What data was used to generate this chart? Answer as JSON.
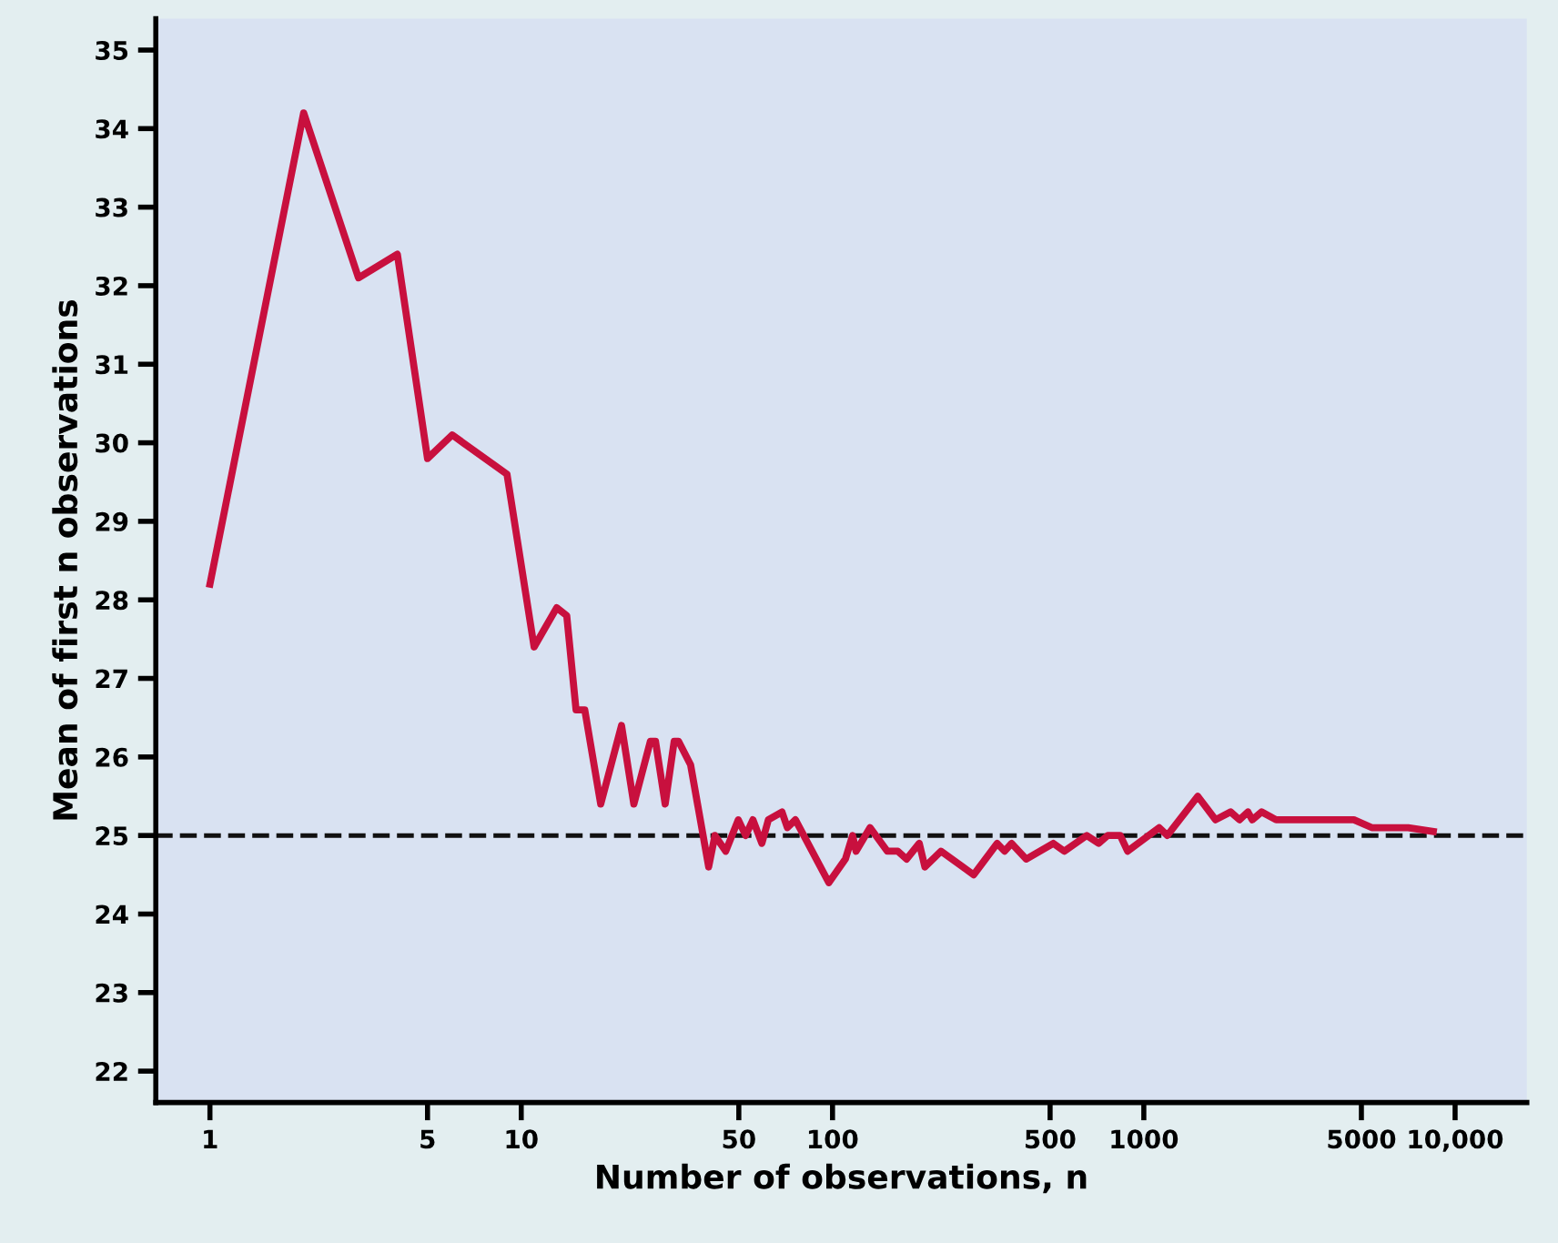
{
  "chart_data": {
    "type": "line",
    "xlabel": "Number of observations, n",
    "ylabel": "Mean of first n observations",
    "x": [
      1,
      2,
      3,
      4,
      5,
      6,
      9,
      11,
      13,
      14,
      15,
      16,
      18,
      21,
      23,
      26,
      27,
      29,
      31,
      32,
      35,
      40,
      41.9,
      45.4,
      49.8,
      52.6,
      55.5,
      59.3,
      62.2,
      68.8,
      71.6,
      76.0,
      97.3,
      110,
      116,
      119,
      132,
      150,
      162,
      173,
      190,
      198,
      223,
      262,
      284,
      338,
      357,
      376,
      419,
      512,
      555,
      656,
      716,
      766,
      840,
      887,
      1120,
      1190,
      1490,
      1700,
      1900,
      2030,
      2160,
      2230,
      2390,
      2660,
      3200,
      3970,
      4730,
      5400,
      6180,
      7070,
      8510
    ],
    "series": [
      {
        "color": "#c8103e",
        "values": [
          28.2,
          34.2,
          32.1,
          32.4,
          29.8,
          30.1,
          29.6,
          27.4,
          27.9,
          27.8,
          26.6,
          26.6,
          25.4,
          26.4,
          25.4,
          26.2,
          26.2,
          25.4,
          26.2,
          26.2,
          25.9,
          24.6,
          25.0,
          24.8,
          25.2,
          25.0,
          25.2,
          24.9,
          25.2,
          25.3,
          25.1,
          25.2,
          24.4,
          24.7,
          25.0,
          24.8,
          25.1,
          24.8,
          24.8,
          24.7,
          24.9,
          24.6,
          24.8,
          24.6,
          24.5,
          24.9,
          24.8,
          24.9,
          24.7,
          24.9,
          24.8,
          25.0,
          24.9,
          25.0,
          25.0,
          24.8,
          25.1,
          25.0,
          25.5,
          25.2,
          25.3,
          25.2,
          25.3,
          25.2,
          25.3,
          25.2,
          25.2,
          25.2,
          25.2,
          25.1,
          25.1,
          25.1,
          25.05
        ]
      }
    ],
    "log": "x",
    "xlim": [
      0.67,
      17000
    ],
    "ylim": [
      21.6,
      35.4
    ],
    "xticks": [
      1,
      5,
      10,
      50,
      100,
      500,
      1000,
      5000,
      {
        "value": 10000,
        "label": "10,000"
      }
    ],
    "yticks": [
      22,
      23,
      24,
      25,
      26,
      27,
      28,
      29,
      30,
      31,
      32,
      33,
      34,
      35
    ],
    "ref_lines": [
      {
        "axis": "y",
        "value": 25,
        "line_style": "dashed",
        "color": "#111111"
      }
    ],
    "grid": false,
    "legend": false,
    "marker": "none",
    "line_style": "solid"
  }
}
